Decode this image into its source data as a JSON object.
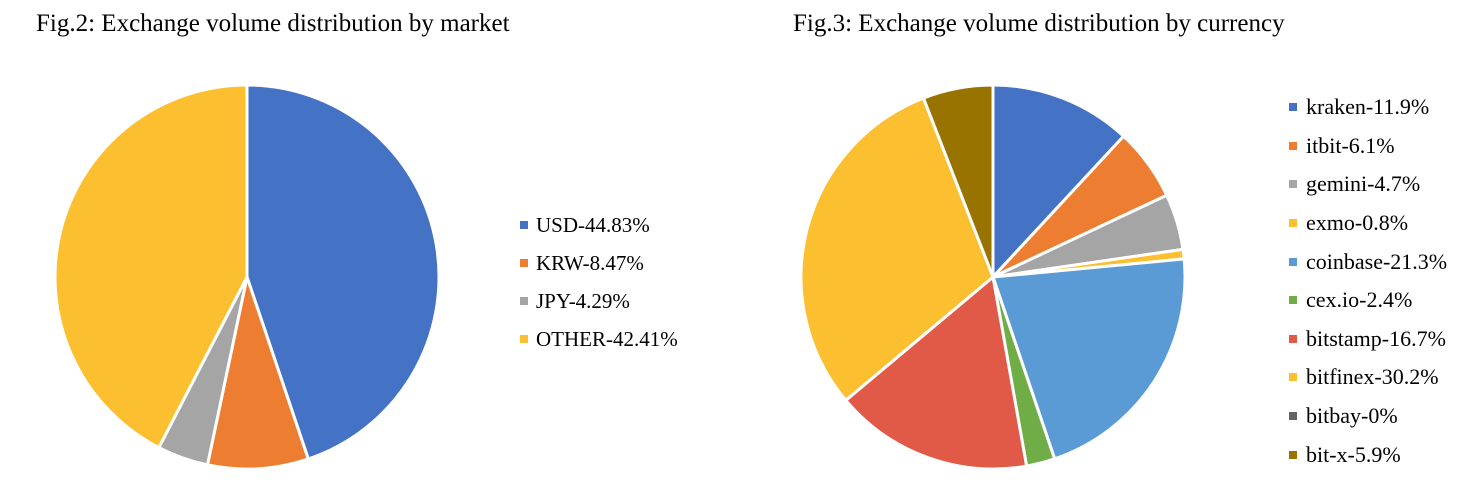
{
  "chart_data": [
    {
      "type": "pie",
      "title": "Fig.2: Exchange volume distribution by market",
      "start_angle_deg": 0,
      "direction": "clockwise",
      "legend_position": "right",
      "slices": [
        {
          "label": "USD-44.83%",
          "name": "USD",
          "value": 44.83,
          "color": "#4472C4"
        },
        {
          "label": "KRW-8.47%",
          "name": "KRW",
          "value": 8.47,
          "color": "#ED7D31"
        },
        {
          "label": "JPY-4.29%",
          "name": "JPY",
          "value": 4.29,
          "color": "#A5A5A5"
        },
        {
          "label": "OTHER-42.41%",
          "name": "OTHER",
          "value": 42.41,
          "color": "#FBBF2F"
        }
      ]
    },
    {
      "type": "pie",
      "title": "Fig.3: Exchange volume distribution by currency",
      "start_angle_deg": 0,
      "direction": "clockwise",
      "legend_position": "right",
      "slices": [
        {
          "label": "kraken-11.9%",
          "name": "kraken",
          "value": 11.9,
          "color": "#4472C4"
        },
        {
          "label": "itbit-6.1%",
          "name": "itbit",
          "value": 6.1,
          "color": "#ED7D31"
        },
        {
          "label": "gemini-4.7%",
          "name": "gemini",
          "value": 4.7,
          "color": "#A5A5A5"
        },
        {
          "label": "exmo-0.8%",
          "name": "exmo",
          "value": 0.8,
          "color": "#FBBF2F"
        },
        {
          "label": "coinbase-21.3%",
          "name": "coinbase",
          "value": 21.3,
          "color": "#5B9BD5"
        },
        {
          "label": "cex.io-2.4%",
          "name": "cex.io",
          "value": 2.4,
          "color": "#70AD47"
        },
        {
          "label": "bitstamp-16.7%",
          "name": "bitstamp",
          "value": 16.7,
          "color": "#E05A47"
        },
        {
          "label": "bitfinex-30.2%",
          "name": "bitfinex",
          "value": 30.2,
          "color": "#FBBF2F"
        },
        {
          "label": "bitbay-0%",
          "name": "bitbay",
          "value": 0,
          "color": "#636363"
        },
        {
          "label": "bit-x-5.9%",
          "name": "bit-x",
          "value": 5.9,
          "color": "#997300"
        }
      ]
    }
  ]
}
